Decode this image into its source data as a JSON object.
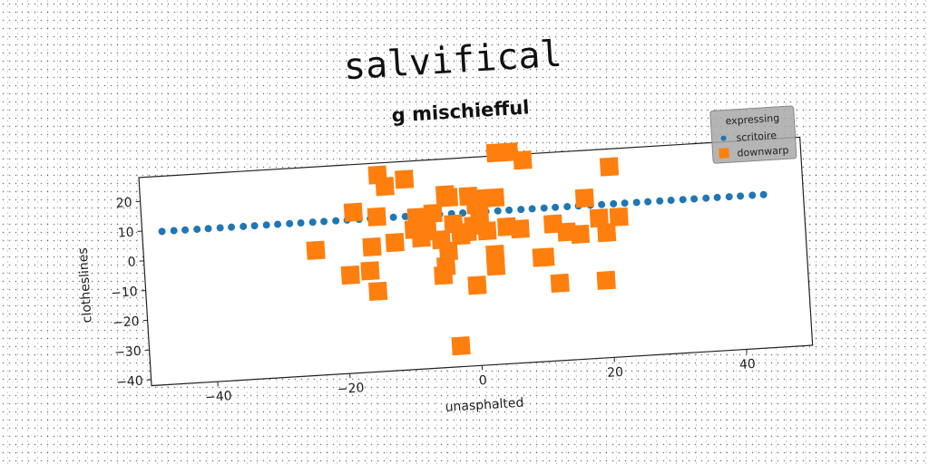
{
  "chart_data": {
    "type": "scatter",
    "title": "salvifical",
    "subtitle": "g mischiefful",
    "xlabel": "unasphalted",
    "ylabel": "clotheslines",
    "xlim": [
      -50,
      50
    ],
    "ylim": [
      -42,
      28
    ],
    "x_ticks": [
      -40,
      -20,
      0,
      20,
      40
    ],
    "y_ticks": [
      -40,
      -30,
      -20,
      -10,
      0,
      10,
      20
    ],
    "x_tick_labels": [
      "−40",
      "−20",
      "0",
      "20",
      "40"
    ],
    "y_tick_labels": [
      "−40",
      "−30",
      "−20",
      "−10",
      "0",
      "10",
      "20"
    ],
    "grid": false,
    "legend": {
      "title": "expressing",
      "placement": "top-right"
    },
    "series": [
      {
        "name": "scritoire",
        "color": "#1f77b4",
        "marker": "circle",
        "x": [
          -47,
          -45.2,
          -43.5,
          -41.7,
          -40,
          -38.2,
          -36.5,
          -34.7,
          -33,
          -31.2,
          -29.5,
          -27.7,
          -26,
          -24.2,
          -22.5,
          -20.7,
          -19,
          -17.2,
          -15.5,
          -13.7,
          -12,
          -10.2,
          -8.5,
          -6.7,
          -5,
          -3.2,
          -1.5,
          0.3,
          2,
          3.8,
          5.5,
          7.3,
          9,
          10.8,
          12.5,
          14.3,
          16,
          17.8,
          19.5,
          21.3,
          23,
          24.8,
          26.5,
          28.3,
          30,
          31.8,
          33.5,
          35.3,
          37,
          38.8,
          40.5,
          42.3,
          44
        ],
        "y": [
          9.5,
          9.5,
          9.5,
          9.5,
          9.5,
          9.5,
          9.5,
          9.5,
          9.5,
          9.5,
          9.5,
          9.5,
          9.5,
          9.5,
          9.5,
          9.5,
          9.5,
          9.5,
          9.5,
          9.5,
          9.5,
          9.5,
          9.5,
          9.5,
          9.5,
          9.5,
          9.5,
          9.5,
          9.5,
          9.5,
          9.5,
          9.5,
          9.5,
          9.5,
          9.5,
          9.5,
          9.5,
          9.5,
          9.5,
          9.5,
          9.5,
          9.5,
          9.5,
          9.5,
          9.5,
          9.5,
          9.5,
          9.5,
          9.5,
          9.5,
          9.5,
          9.5,
          9.5
        ]
      },
      {
        "name": "downwarp",
        "color": "#ff7f0e",
        "marker": "square",
        "x": [
          -24,
          -19,
          -18,
          -16,
          -15.5,
          -15,
          -14.5,
          -14,
          -13,
          -12,
          -10,
          -9,
          -8.5,
          -8,
          -7,
          -6,
          -5,
          -5,
          -4.5,
          -4,
          -4,
          -3.5,
          -3,
          -3,
          -2,
          -1,
          -0.5,
          0,
          0,
          0.5,
          1,
          1.5,
          2,
          3,
          3,
          3.5,
          4,
          5,
          6,
          7,
          8,
          10,
          10.5,
          12,
          12.5,
          14,
          16,
          17,
          19,
          19.5,
          20,
          21,
          22
        ],
        "y": [
          0,
          -9,
          12,
          -8,
          0,
          -15,
          10,
          24,
          20,
          1,
          22,
          5,
          9,
          2,
          4,
          10,
          1,
          -11,
          -8,
          -3,
          16,
          15,
          6,
          -35,
          2,
          3,
          15,
          5,
          -15,
          12,
          8,
          14,
          3,
          -5,
          -9,
          14,
          29,
          4,
          29,
          3,
          26,
          -7,
          -7,
          4,
          -16,
          1,
          0,
          12,
          5,
          -16,
          0,
          22,
          5
        ]
      }
    ]
  }
}
